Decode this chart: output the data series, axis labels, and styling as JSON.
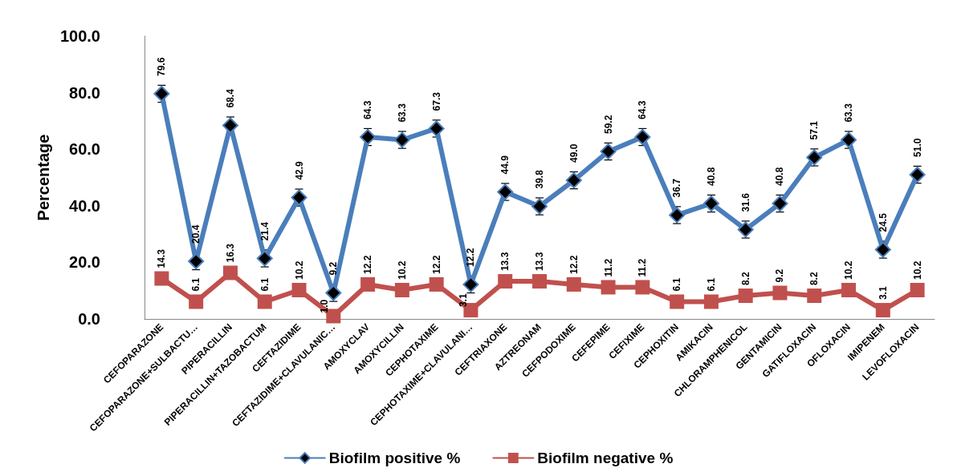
{
  "chart_data": {
    "type": "line",
    "ylabel": "Percentage",
    "categories": [
      "CEFOPARAZONE",
      "CEFOPARAZONE+SULBACTU…",
      "PIPERACILLIN",
      "PIPERACILLIN+TAZOBACTUM",
      "CEFTAZIDIME",
      "CEFTAZIDIME+CLAVULANIC…",
      "AMOXYCLAV",
      "AMOXYCILLIN",
      "CEPHOTAXIME",
      "CEPHOTAXIME+CLAVULANI…",
      "CEFTRIAXONE",
      "AZTREONAM",
      "CEFPODOXIME",
      "CEFEPIME",
      "CEFIXIME",
      "CEPHOXITIN",
      "AMIKACIN",
      "CHLORAMPHENICOL",
      "GENTAMICIN",
      "GATIFLOXACIN",
      "OFLOXACIN",
      "IMIPENEM",
      "LEVOFLOXACIN"
    ],
    "series": [
      {
        "name": "Biofilm positive %",
        "color": "#4a7ebb",
        "marker": "diamond",
        "values": [
          79.6,
          20.4,
          68.4,
          21.4,
          42.9,
          9.2,
          64.3,
          63.3,
          67.3,
          12.2,
          44.9,
          39.8,
          49.0,
          59.2,
          64.3,
          36.7,
          40.8,
          31.6,
          40.8,
          57.1,
          63.3,
          24.5,
          51.0
        ],
        "value_labels": [
          "79.6",
          "20.4",
          "68.4",
          "21.4",
          "42.9",
          "9.2",
          "64.3",
          "63.3",
          "67.3",
          "12.2",
          "44.9",
          "39.8",
          "49.0",
          "59.2",
          "64.3",
          "36.7",
          "40.8",
          "31.6",
          "40.8",
          "57.1",
          "63.3",
          "24.5",
          "51.0"
        ],
        "errors": [
          3,
          3,
          3,
          3,
          3,
          3,
          3,
          3,
          3,
          3,
          3,
          3,
          3,
          3,
          3,
          3,
          3,
          3,
          3,
          3,
          3,
          3,
          3
        ]
      },
      {
        "name": "Biofilm negative %",
        "color": "#c0504d",
        "marker": "square",
        "values": [
          14.3,
          6.1,
          16.3,
          6.1,
          10.2,
          1.0,
          12.2,
          10.2,
          12.2,
          3.1,
          13.3,
          13.3,
          12.2,
          11.2,
          11.2,
          6.1,
          6.1,
          8.2,
          9.2,
          8.2,
          10.2,
          3.1,
          10.2
        ],
        "value_labels": [
          "14.3",
          "6.1",
          "16.3",
          "6.1",
          "10.2",
          "1.0",
          "12.2",
          "10.2",
          "12.2",
          "3.1",
          "13.3",
          "13.3",
          "12.2",
          "11.2",
          "11.2",
          "6.1",
          "6.1",
          "8.2",
          "9.2",
          "8.2",
          "10.2",
          "3.1",
          "10.2"
        ]
      }
    ],
    "ylim": [
      0,
      100
    ],
    "yticks": [
      {
        "value": 0,
        "label": "0.0"
      },
      {
        "value": 20,
        "label": "20.0"
      },
      {
        "value": 40,
        "label": "40.0"
      },
      {
        "value": 60,
        "label": "60.0"
      },
      {
        "value": 80,
        "label": "80.0"
      },
      {
        "value": 100,
        "label": "100.0"
      }
    ],
    "legend": "bottom",
    "line_style": "solid"
  }
}
